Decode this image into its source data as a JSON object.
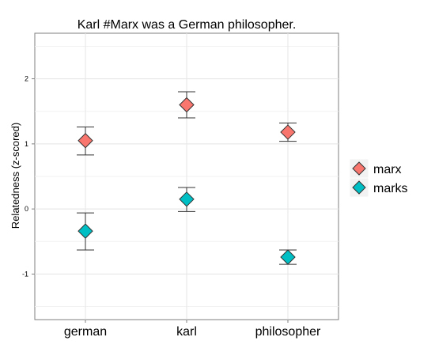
{
  "chart_data": {
    "type": "scatter",
    "title": "Karl #Marx was a German philosopher.",
    "xlabel": "",
    "ylabel": "Relatedness (z-scored)",
    "categories": [
      "german",
      "karl",
      "philosopher"
    ],
    "yticks": [
      "-1",
      "0",
      "1",
      "2"
    ],
    "ylim": [
      -1.7,
      2.7
    ],
    "grid": true,
    "legend_position": "right",
    "error_bars": true,
    "series": [
      {
        "name": "marx",
        "color": "#F8766D",
        "values": [
          1.05,
          1.6,
          1.18
        ],
        "error_low": [
          0.83,
          1.4,
          1.04
        ],
        "error_high": [
          1.26,
          1.8,
          1.32
        ]
      },
      {
        "name": "marks",
        "color": "#00BFC4",
        "values": [
          -0.34,
          0.15,
          -0.74
        ],
        "error_low": [
          -0.63,
          -0.04,
          -0.85
        ],
        "error_high": [
          -0.06,
          0.33,
          -0.63
        ]
      }
    ]
  }
}
